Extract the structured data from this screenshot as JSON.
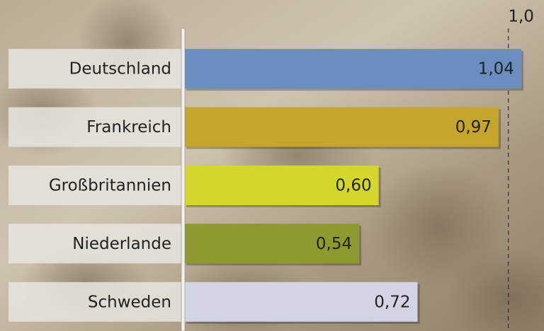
{
  "chart_data": {
    "type": "bar",
    "orientation": "horizontal",
    "categories": [
      "Deutschland",
      "Frankreich",
      "Großbritannien",
      "Niederlande",
      "Schweden"
    ],
    "values": [
      1.04,
      0.97,
      0.6,
      0.54,
      0.72
    ],
    "value_labels": [
      "1,04",
      "0,97",
      "0,60",
      "0,54",
      "0,72"
    ],
    "colors": [
      "#6a8ec0",
      "#c6a52c",
      "#d3d62c",
      "#8e9a30",
      "#d2d4e4"
    ],
    "xlim": [
      0,
      1.11
    ],
    "xticks": [
      {
        "value": 1,
        "label": "1,0"
      }
    ],
    "reference_line": true
  }
}
